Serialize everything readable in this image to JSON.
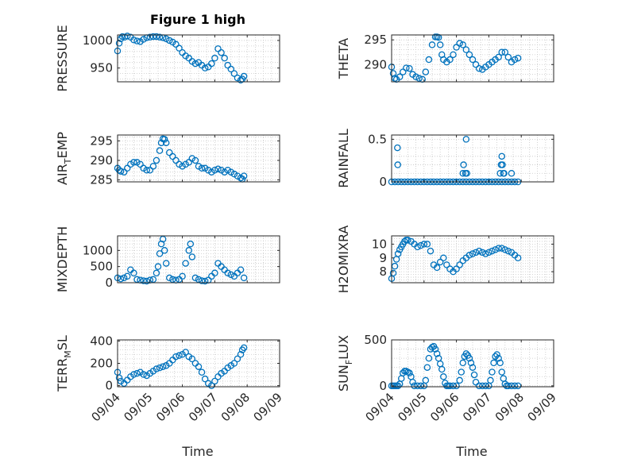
{
  "chart_data": [
    {
      "type": "scatter",
      "title": "Figure 1 high",
      "ylabel": "PRESSURE",
      "ylim": [
        925,
        1010
      ],
      "yticks": [
        "950",
        "1000"
      ],
      "ytick_values": [
        950,
        1000
      ],
      "color": "#0072BD",
      "x": [
        0.0,
        0.05,
        0.1,
        0.15,
        0.22,
        0.3,
        0.4,
        0.5,
        0.6,
        0.7,
        0.8,
        0.9,
        1.0,
        1.1,
        1.2,
        1.3,
        1.4,
        1.5,
        1.6,
        1.7,
        1.8,
        1.9,
        2.0,
        2.1,
        2.2,
        2.3,
        2.4,
        2.5,
        2.6,
        2.7,
        2.8,
        2.9,
        3.0,
        3.1,
        3.2,
        3.3,
        3.4,
        3.5,
        3.6,
        3.7,
        3.8,
        3.85,
        3.9
      ],
      "y": [
        981,
        995,
        1003,
        1007,
        1006,
        1008,
        1006,
        1001,
        999,
        998,
        1002,
        1005,
        1006,
        1007,
        1007,
        1006,
        1005,
        1003,
        1000,
        997,
        993,
        986,
        978,
        972,
        968,
        962,
        958,
        960,
        955,
        950,
        952,
        958,
        968,
        985,
        978,
        968,
        955,
        948,
        940,
        932,
        928,
        930,
        935
      ]
    },
    {
      "type": "scatter",
      "ylabel": "THETA",
      "ylim": [
        286.5,
        296
      ],
      "yticks": [
        "290",
        "295"
      ],
      "ytick_values": [
        290,
        295
      ],
      "color": "#0072BD",
      "x": [
        0.0,
        0.05,
        0.1,
        0.15,
        0.25,
        0.35,
        0.45,
        0.55,
        0.65,
        0.75,
        0.85,
        0.95,
        1.05,
        1.15,
        1.25,
        1.35,
        1.4,
        1.45,
        1.5,
        1.55,
        1.6,
        1.7,
        1.8,
        1.9,
        2.0,
        2.1,
        2.2,
        2.3,
        2.4,
        2.5,
        2.6,
        2.7,
        2.8,
        2.9,
        3.0,
        3.1,
        3.2,
        3.3,
        3.4,
        3.5,
        3.6,
        3.7,
        3.8,
        3.9
      ],
      "y": [
        289.5,
        288.2,
        287.2,
        287.0,
        287.5,
        288.5,
        289.3,
        289.2,
        288.0,
        287.5,
        287.2,
        287.0,
        288.5,
        291.0,
        294.0,
        295.6,
        295.6,
        295.5,
        294.0,
        292.0,
        291.0,
        290.5,
        291.0,
        292.0,
        293.5,
        294.3,
        294.0,
        293.0,
        292.0,
        291.0,
        290.0,
        289.2,
        289.0,
        289.5,
        290.0,
        290.5,
        291.0,
        291.5,
        292.5,
        292.5,
        291.5,
        290.5,
        291.0,
        291.3
      ]
    },
    {
      "type": "scatter",
      "ylabel": "AIR_TEMP",
      "ylim": [
        284.5,
        296.5
      ],
      "yticks": [
        "285",
        "290",
        "295"
      ],
      "ytick_values": [
        285,
        290,
        295
      ],
      "color": "#0072BD",
      "x": [
        0.0,
        0.05,
        0.1,
        0.2,
        0.3,
        0.4,
        0.5,
        0.6,
        0.7,
        0.8,
        0.9,
        1.0,
        1.1,
        1.2,
        1.3,
        1.35,
        1.4,
        1.45,
        1.5,
        1.6,
        1.7,
        1.8,
        1.9,
        2.0,
        2.1,
        2.2,
        2.3,
        2.4,
        2.5,
        2.6,
        2.7,
        2.8,
        2.9,
        3.0,
        3.1,
        3.2,
        3.3,
        3.4,
        3.5,
        3.6,
        3.7,
        3.8,
        3.85,
        3.9
      ],
      "y": [
        288.0,
        287.5,
        287.2,
        287.0,
        288.0,
        289.0,
        289.5,
        289.5,
        289.0,
        288.0,
        287.5,
        287.5,
        288.5,
        290.0,
        292.5,
        294.5,
        295.5,
        295.4,
        294.5,
        292.0,
        291.0,
        290.0,
        289.0,
        288.5,
        289.0,
        289.5,
        290.5,
        290.0,
        288.5,
        288.0,
        288.0,
        287.5,
        287.0,
        287.5,
        287.8,
        287.5,
        287.0,
        287.5,
        287.0,
        286.5,
        286.0,
        285.5,
        285.2,
        286.0
      ]
    },
    {
      "type": "scatter",
      "ylabel": "RAINFALL",
      "ylim": [
        0,
        0.55
      ],
      "yticks": [
        "0",
        "0.5"
      ],
      "ytick_values": [
        0,
        0.5
      ],
      "color": "#0072BD",
      "x": [
        0.0,
        0.1,
        0.2,
        0.3,
        0.4,
        0.5,
        0.6,
        0.7,
        0.8,
        0.9,
        1.0,
        1.1,
        1.2,
        1.3,
        1.4,
        1.5,
        1.6,
        1.7,
        1.8,
        1.9,
        2.0,
        2.1,
        2.2,
        2.3,
        2.4,
        2.5,
        2.6,
        2.7,
        2.8,
        2.9,
        3.0,
        3.1,
        3.2,
        3.3,
        3.4,
        3.5,
        3.6,
        3.7,
        3.8,
        3.9,
        0.18,
        0.19,
        2.2,
        2.22,
        2.28,
        2.3,
        2.32,
        3.35,
        3.38,
        3.4,
        3.42,
        3.45,
        3.47,
        3.7
      ],
      "y": [
        0,
        0,
        0,
        0,
        0,
        0,
        0,
        0,
        0,
        0,
        0,
        0,
        0,
        0,
        0,
        0,
        0,
        0,
        0,
        0,
        0,
        0,
        0,
        0,
        0,
        0,
        0,
        0,
        0,
        0,
        0,
        0,
        0,
        0,
        0,
        0,
        0,
        0,
        0,
        0,
        0.4,
        0.2,
        0.1,
        0.2,
        0.1,
        0.5,
        0.1,
        0.1,
        0.2,
        0.3,
        0.2,
        0.1,
        0.1,
        0.1
      ]
    },
    {
      "type": "scatter",
      "ylabel": "MIXDEPTH",
      "ylim": [
        0,
        1450
      ],
      "yticks": [
        "0",
        "500",
        "1000"
      ],
      "ytick_values": [
        0,
        500,
        1000
      ],
      "color": "#0072BD",
      "x": [
        0.0,
        0.1,
        0.2,
        0.3,
        0.4,
        0.5,
        0.6,
        0.7,
        0.8,
        0.9,
        1.0,
        1.1,
        1.2,
        1.25,
        1.3,
        1.35,
        1.4,
        1.45,
        1.5,
        1.6,
        1.7,
        1.8,
        1.9,
        2.0,
        2.1,
        2.2,
        2.25,
        2.3,
        2.4,
        2.5,
        2.6,
        2.7,
        2.8,
        2.9,
        3.0,
        3.1,
        3.2,
        3.3,
        3.4,
        3.5,
        3.6,
        3.7,
        3.8,
        3.9
      ],
      "y": [
        150,
        120,
        150,
        200,
        400,
        300,
        100,
        80,
        60,
        50,
        80,
        100,
        300,
        500,
        900,
        1200,
        1350,
        1000,
        600,
        150,
        100,
        80,
        100,
        200,
        600,
        1000,
        1200,
        800,
        150,
        100,
        60,
        50,
        80,
        200,
        300,
        600,
        500,
        400,
        300,
        250,
        200,
        300,
        400,
        150
      ]
    },
    {
      "type": "scatter",
      "ylabel": "H2OMIXRA",
      "ylim": [
        7.2,
        10.6
      ],
      "yticks": [
        "8",
        "9",
        "10"
      ],
      "ytick_values": [
        8,
        9,
        10
      ],
      "color": "#0072BD",
      "x": [
        0.0,
        0.05,
        0.1,
        0.15,
        0.2,
        0.25,
        0.3,
        0.35,
        0.4,
        0.45,
        0.5,
        0.6,
        0.7,
        0.8,
        0.9,
        1.0,
        1.1,
        1.2,
        1.3,
        1.4,
        1.5,
        1.6,
        1.7,
        1.8,
        1.9,
        2.0,
        2.1,
        2.2,
        2.3,
        2.4,
        2.5,
        2.6,
        2.7,
        2.8,
        2.9,
        3.0,
        3.1,
        3.2,
        3.3,
        3.4,
        3.5,
        3.6,
        3.7,
        3.8,
        3.9
      ],
      "y": [
        7.5,
        7.9,
        8.4,
        8.9,
        9.3,
        9.6,
        9.8,
        10.0,
        10.2,
        10.3,
        10.3,
        10.2,
        10.0,
        9.8,
        9.9,
        10.0,
        10.0,
        9.5,
        8.5,
        8.3,
        8.7,
        9.0,
        8.5,
        8.2,
        8.0,
        8.2,
        8.5,
        8.8,
        9.0,
        9.2,
        9.3,
        9.4,
        9.5,
        9.4,
        9.3,
        9.4,
        9.5,
        9.6,
        9.7,
        9.7,
        9.6,
        9.5,
        9.4,
        9.2,
        9.0
      ]
    },
    {
      "type": "scatter",
      "ylabel": "TERR_MSL",
      "ylim": [
        -10,
        410
      ],
      "yticks": [
        "0",
        "200",
        "400"
      ],
      "ytick_values": [
        0,
        200,
        400
      ],
      "color": "#0072BD",
      "x": [
        0.0,
        0.05,
        0.1,
        0.2,
        0.3,
        0.4,
        0.5,
        0.6,
        0.7,
        0.8,
        0.9,
        1.0,
        1.1,
        1.2,
        1.3,
        1.4,
        1.5,
        1.6,
        1.7,
        1.8,
        1.9,
        2.0,
        2.1,
        2.2,
        2.3,
        2.4,
        2.5,
        2.6,
        2.7,
        2.8,
        2.9,
        3.0,
        3.1,
        3.2,
        3.3,
        3.4,
        3.5,
        3.6,
        3.7,
        3.8,
        3.85,
        3.9
      ],
      "y": [
        120,
        70,
        40,
        20,
        50,
        80,
        100,
        110,
        120,
        100,
        90,
        110,
        130,
        150,
        160,
        170,
        180,
        200,
        230,
        260,
        270,
        280,
        300,
        260,
        240,
        200,
        170,
        120,
        60,
        20,
        0,
        40,
        80,
        110,
        130,
        160,
        180,
        200,
        240,
        280,
        320,
        340
      ]
    },
    {
      "type": "scatter",
      "ylabel": "SUN_FLUX",
      "ylim": [
        -10,
        500
      ],
      "yticks": [
        "0",
        "500"
      ],
      "ytick_values": [
        0,
        500
      ],
      "color": "#0072BD",
      "x": [
        0.0,
        0.05,
        0.1,
        0.15,
        0.2,
        0.25,
        0.3,
        0.35,
        0.4,
        0.45,
        0.5,
        0.55,
        0.6,
        0.65,
        0.7,
        0.8,
        0.9,
        1.0,
        1.05,
        1.1,
        1.15,
        1.2,
        1.25,
        1.3,
        1.35,
        1.4,
        1.45,
        1.5,
        1.55,
        1.6,
        1.65,
        1.7,
        1.75,
        1.8,
        1.9,
        2.0,
        2.1,
        2.15,
        2.2,
        2.25,
        2.3,
        2.35,
        2.4,
        2.45,
        2.5,
        2.55,
        2.6,
        2.7,
        2.8,
        2.9,
        3.0,
        3.05,
        3.1,
        3.15,
        3.2,
        3.25,
        3.3,
        3.35,
        3.4,
        3.45,
        3.5,
        3.55,
        3.6,
        3.7,
        3.8,
        3.9
      ],
      "y": [
        0,
        0,
        0,
        0,
        0,
        20,
        80,
        140,
        160,
        160,
        150,
        140,
        100,
        40,
        0,
        0,
        0,
        0,
        60,
        200,
        300,
        400,
        420,
        430,
        400,
        350,
        300,
        240,
        180,
        100,
        30,
        0,
        0,
        0,
        0,
        0,
        60,
        150,
        250,
        320,
        350,
        330,
        300,
        250,
        200,
        120,
        40,
        0,
        0,
        0,
        0,
        60,
        150,
        250,
        320,
        340,
        300,
        250,
        150,
        80,
        20,
        0,
        0,
        0,
        0,
        0
      ]
    }
  ],
  "x_ticks": [
    "09/04",
    "09/05",
    "09/06",
    "09/07",
    "09/08",
    "09/09"
  ],
  "x_axis_label": "Time"
}
